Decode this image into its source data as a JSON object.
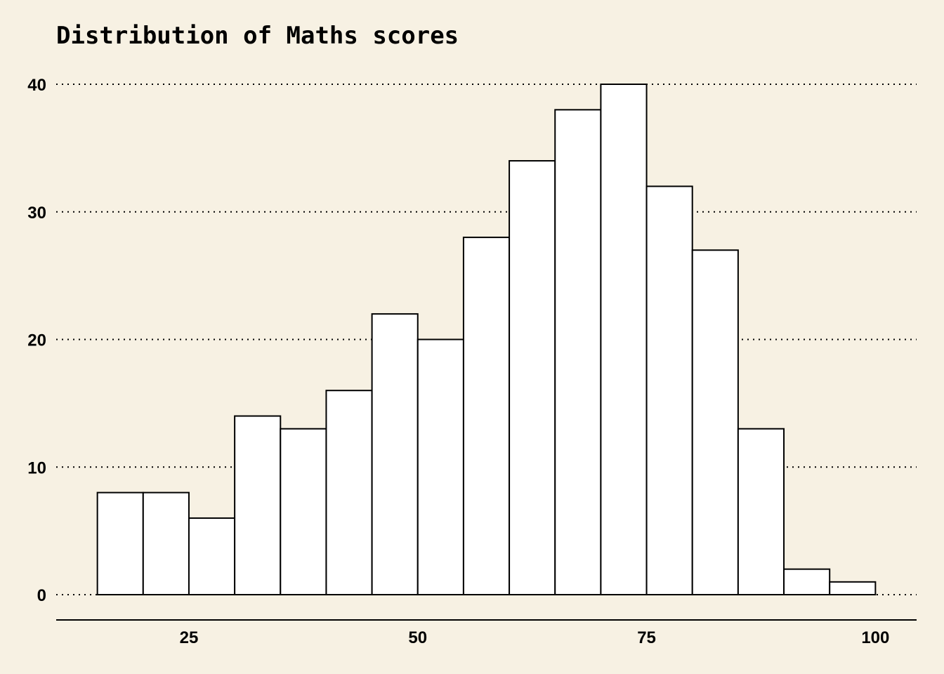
{
  "chart_data": {
    "type": "bar",
    "title": "Distribution of Maths scores",
    "xlabel": "",
    "ylabel": "",
    "xlim": [
      10.5,
      104.5
    ],
    "ylim": [
      0,
      40
    ],
    "grid": "horizontal dotted",
    "bin_width": 5,
    "bins": [
      {
        "x0": 15,
        "x1": 20,
        "count": 8
      },
      {
        "x0": 20,
        "x1": 25,
        "count": 8
      },
      {
        "x0": 25,
        "x1": 30,
        "count": 6
      },
      {
        "x0": 30,
        "x1": 35,
        "count": 14
      },
      {
        "x0": 35,
        "x1": 40,
        "count": 13
      },
      {
        "x0": 40,
        "x1": 45,
        "count": 16
      },
      {
        "x0": 45,
        "x1": 50,
        "count": 22
      },
      {
        "x0": 50,
        "x1": 55,
        "count": 20
      },
      {
        "x0": 55,
        "x1": 60,
        "count": 28
      },
      {
        "x0": 60,
        "x1": 65,
        "count": 34
      },
      {
        "x0": 65,
        "x1": 70,
        "count": 38
      },
      {
        "x0": 70,
        "x1": 75,
        "count": 40
      },
      {
        "x0": 75,
        "x1": 80,
        "count": 32
      },
      {
        "x0": 80,
        "x1": 85,
        "count": 27
      },
      {
        "x0": 85,
        "x1": 90,
        "count": 13
      },
      {
        "x0": 90,
        "x1": 95,
        "count": 2
      },
      {
        "x0": 95,
        "x1": 100,
        "count": 1
      }
    ],
    "x_ticks": [
      25,
      50,
      75,
      100
    ],
    "y_ticks": [
      0,
      10,
      20,
      30,
      40
    ]
  }
}
